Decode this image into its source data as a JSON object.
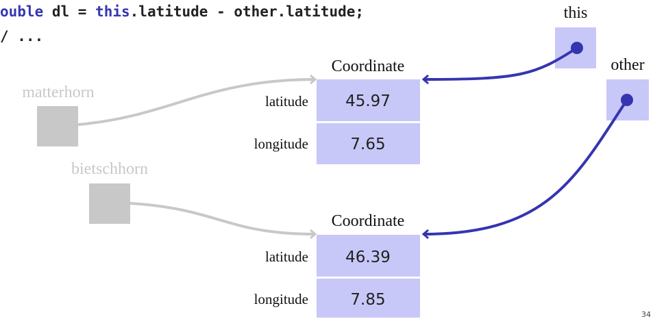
{
  "code": {
    "line1": [
      "ouble",
      " dl = ",
      "this",
      ".latitude - other.latitude;"
    ],
    "line2": "/ ..."
  },
  "variables": [
    {
      "name": "matterhorn"
    },
    {
      "name": "bietschhorn"
    },
    {
      "name": "this"
    },
    {
      "name": "other"
    }
  ],
  "objects": [
    {
      "type": "Coordinate",
      "fields": [
        {
          "name": "latitude",
          "value": 45.97
        },
        {
          "name": "longitude",
          "value": 7.65
        }
      ]
    },
    {
      "type": "Coordinate",
      "fields": [
        {
          "name": "latitude",
          "value": 46.39
        },
        {
          "name": "longitude",
          "value": 7.85
        }
      ]
    }
  ],
  "page_number": "34"
}
